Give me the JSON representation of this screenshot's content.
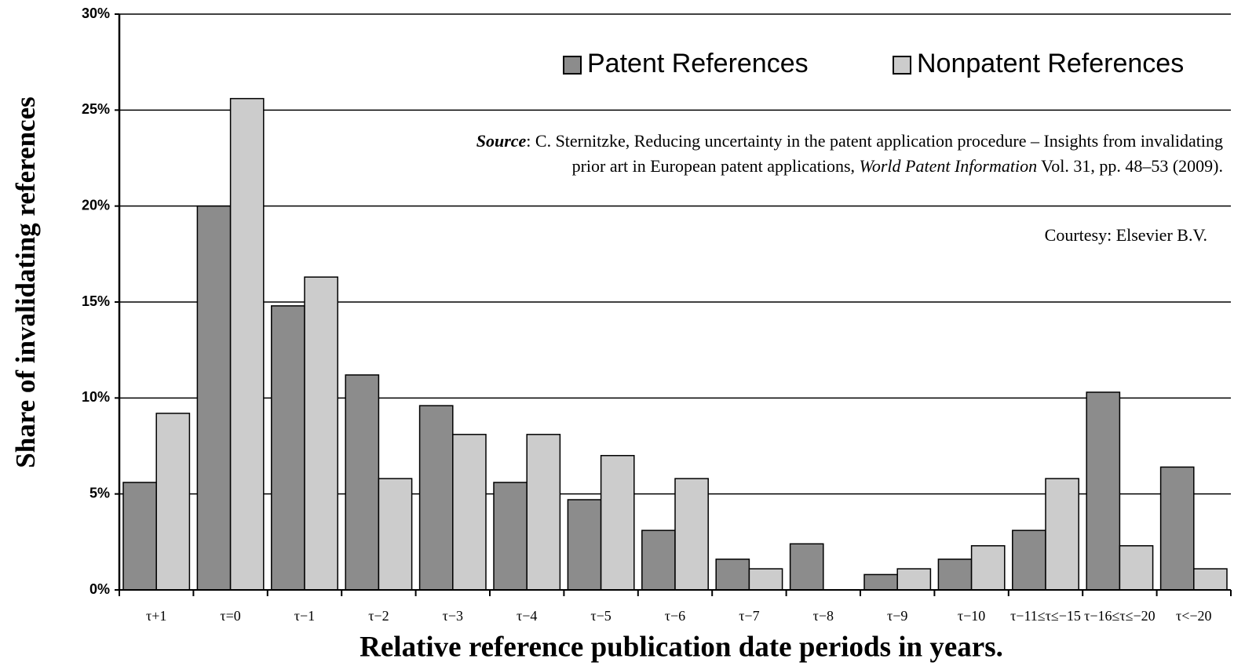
{
  "chart_data": {
    "type": "bar",
    "y_label": "Share of invalidating references",
    "x_label": "Relative reference publication date periods in years.",
    "categories": [
      "τ+1",
      "τ=0",
      "τ−1",
      "τ−2",
      "τ−3",
      "τ−4",
      "τ−5",
      "τ−6",
      "τ−7",
      "τ−8",
      "τ−9",
      "τ−10",
      "τ−11≤τ≤−15",
      "τ−16≤τ≤−20",
      "τ<−20"
    ],
    "series": [
      {
        "name": "Patent References",
        "color": "#8c8c8c",
        "values": [
          5.6,
          20,
          14.8,
          11.2,
          9.6,
          5.6,
          4.7,
          3.1,
          1.6,
          2.4,
          0.8,
          1.6,
          3.1,
          10.3,
          6.4
        ]
      },
      {
        "name": "Nonpatent References",
        "color": "#cccccc",
        "values": [
          9.2,
          25.6,
          16.3,
          5.8,
          8.1,
          8.1,
          7.0,
          5.8,
          1.1,
          0,
          1.1,
          2.3,
          5.8,
          2.3,
          1.1
        ]
      }
    ],
    "ylim": [
      0,
      30
    ],
    "yticks": [
      {
        "value": 0,
        "label": "0%"
      },
      {
        "value": 5,
        "label": "5%"
      },
      {
        "value": 10,
        "label": "10%"
      },
      {
        "value": 15,
        "label": "15%"
      },
      {
        "value": 20,
        "label": "20%"
      },
      {
        "value": 25,
        "label": "25%"
      },
      {
        "value": 30,
        "label": "30%"
      }
    ],
    "grid": true,
    "legend": "upper right",
    "annotations": {
      "source_lead": "Source",
      "source_line1": ": C. Sternitzke, Reducing uncertainty in the patent application procedure – Insights from invalidating",
      "source_line2a": "prior art in European patent applications, ",
      "source_journal": "World Patent Information",
      "source_line2b": " Vol. 31, pp. 48–53 (2009).",
      "courtesy": "Courtesy: Elsevier B.V."
    }
  }
}
